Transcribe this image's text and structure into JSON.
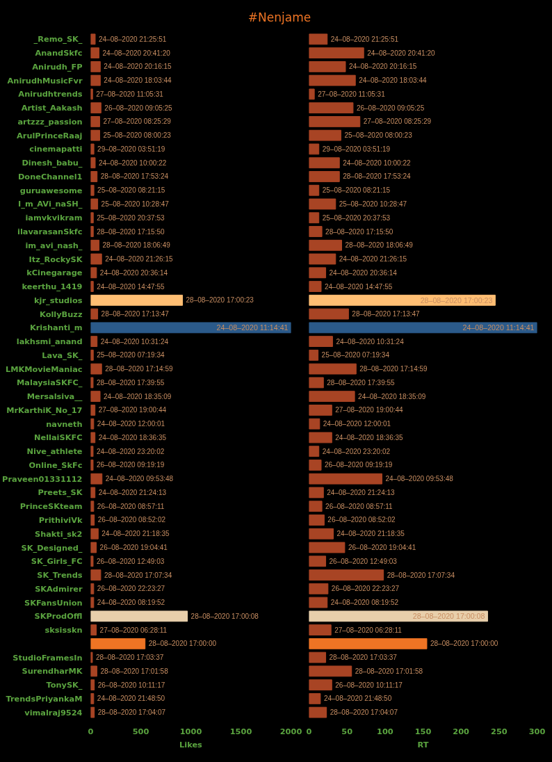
{
  "chart_data": [
    {
      "type": "bar",
      "orientation": "horizontal",
      "title": "#Nenjame",
      "xlabel": "Likes",
      "xlim": [
        0,
        2000
      ],
      "xticks": [
        0,
        500,
        1000,
        1500,
        2000
      ],
      "grid": false,
      "categories": [
        "_Remo_SK_",
        "AnandSkfc",
        "Anirudh_FP",
        "AnirudhMusicFvr",
        "Anirudhtrends",
        "Artist_Aakash",
        "artzzz_passion",
        "ArulPrinceRaaj",
        "cinemapatti",
        "Dinesh_babu_",
        "DoneChannel1",
        "guruawesome",
        "I_m_AVi_naSH_",
        "iamvkvikram",
        "ilavarasanSkfc",
        "im_avi_nash_",
        "Itz_RockySK",
        "kCinegarage",
        "keerthu_1419",
        "kjr_studios",
        "KollyBuzz",
        "Krishanti_m",
        "lakhsmi_anand",
        "Lava_SK_",
        "LMKMovieManiac",
        "MalaysiaSKFC_",
        "Mersalsiva__",
        "MrKarthiK_No_17",
        "navneth",
        "NellaiSKFC",
        "Nive_athlete",
        "Online_SkFc",
        "Praveen01331112",
        "Preets_SK",
        "PrinceSKteam",
        "PrithiviVk",
        "Shakti_sk2",
        "SK_Designed_",
        "SK_Girls_FC",
        "SK_Trends",
        "SKAdmirer",
        "SKFansUnion",
        "SKProdOffl",
        "sksisskn",
        null,
        "StudioFramesIn",
        "SurendharMK",
        "TonySK_",
        "TrendsPriyankaM",
        "vimalraj9524"
      ],
      "values": [
        45,
        83,
        96,
        96,
        19,
        103,
        90,
        90,
        32,
        45,
        64,
        32,
        70,
        26,
        26,
        83,
        109,
        58,
        26,
        917,
        70,
        2000,
        64,
        26,
        109,
        24,
        94,
        43,
        30,
        43,
        24,
        24,
        113,
        43,
        30,
        36,
        75,
        56,
        24,
        100,
        30,
        30,
        966,
        56,
        543,
        17,
        62,
        36,
        30,
        36
      ],
      "colors": [
        "#a84424",
        "#a84424",
        "#a84424",
        "#a84424",
        "#a84424",
        "#a84424",
        "#a84424",
        "#a84424",
        "#a84424",
        "#a84424",
        "#a84424",
        "#a84424",
        "#a84424",
        "#a84424",
        "#a84424",
        "#a84424",
        "#a84424",
        "#a84424",
        "#a84424",
        "#ffbe73",
        "#a84424",
        "#2b5a8a",
        "#a84424",
        "#a84424",
        "#a84424",
        "#a84424",
        "#a84424",
        "#a84424",
        "#a84424",
        "#a84424",
        "#a84424",
        "#a84424",
        "#a84424",
        "#a84424",
        "#a84424",
        "#a84424",
        "#a84424",
        "#a84424",
        "#a84424",
        "#a84424",
        "#a84424",
        "#a84424",
        "#e8cfab",
        "#a84424",
        "#ee7424",
        "#a84424",
        "#a84424",
        "#a84424",
        "#a84424",
        "#a84424"
      ],
      "value_labels": [
        "24–08–2020 21:25:51",
        "24–08–2020 20:41:20",
        "24–08–2020 20:16:15",
        "24–08–2020 18:03:44",
        "27–08–2020 11:05:31",
        "26–08–2020 09:05:25",
        "27–08–2020 08:25:29",
        "25–08–2020 08:00:23",
        "29–08–2020 03:51:19",
        "24–08–2020 10:00:22",
        "28–08–2020 17:53:24",
        "25–08–2020 08:21:15",
        "25–08–2020 10:28:47",
        "25–08–2020 20:37:53",
        "28–08–2020 17:15:50",
        "28–08–2020 18:06:49",
        "24–08–2020 21:26:15",
        "24–08–2020 20:36:14",
        "24–08–2020 14:47:55",
        "28–08–2020 17:00:23",
        "28–08–2020 17:13:47",
        "24–08–2020 11:14:41",
        "24–08–2020 10:31:24",
        "25–08–2020 07:19:34",
        "28–08–2020 17:14:59",
        "28–08–2020 17:39:55",
        "24–08–2020 18:35:09",
        "27–08–2020 19:00:44",
        "24–08–2020 12:00:01",
        "24–08–2020 18:36:35",
        "24–08–2020 23:20:02",
        "26–08–2020 09:19:19",
        "24–08–2020 09:53:48",
        "24–08–2020 21:24:13",
        "26–08–2020 08:57:11",
        "26–08–2020 08:52:02",
        "24–08–2020 21:18:35",
        "26–08–2020 19:04:41",
        "26–08–2020 12:49:03",
        "28–08–2020 17:07:34",
        "26–08–2020 22:23:27",
        "24–08–2020 08:19:52",
        "28–08–2020 17:00:08",
        "27–08–2020 06:28:11",
        "28–08–2020 17:00:00",
        "28–08–2020 17:03:37",
        "28–08–2020 17:01:58",
        "26–08–2020 10:11:17",
        "24–08–2020 21:48:50",
        "28–08–2020 17:04:07"
      ]
    },
    {
      "type": "bar",
      "orientation": "horizontal",
      "xlabel": "RT",
      "xlim": [
        0,
        300
      ],
      "xticks": [
        0,
        50,
        100,
        150,
        200,
        250,
        300
      ],
      "grid": false,
      "tick_labels": "x",
      "values": [
        24,
        72,
        48,
        61,
        7,
        58,
        67,
        42,
        13,
        40,
        40,
        13,
        35,
        13,
        17,
        43,
        35,
        22,
        16,
        245,
        52,
        300,
        31,
        12,
        62,
        19,
        60,
        30,
        14,
        30,
        13,
        16,
        96,
        19,
        17,
        20,
        32,
        47,
        22,
        98,
        25,
        24,
        235,
        29,
        155,
        22,
        56,
        30,
        15,
        23
      ],
      "colors": [
        "#a84424",
        "#a84424",
        "#a84424",
        "#a84424",
        "#a84424",
        "#a84424",
        "#a84424",
        "#a84424",
        "#a84424",
        "#a84424",
        "#a84424",
        "#a84424",
        "#a84424",
        "#a84424",
        "#a84424",
        "#a84424",
        "#a84424",
        "#a84424",
        "#a84424",
        "#ffbe73",
        "#a84424",
        "#2b5a8a",
        "#a84424",
        "#a84424",
        "#a84424",
        "#a84424",
        "#a84424",
        "#a84424",
        "#a84424",
        "#a84424",
        "#a84424",
        "#a84424",
        "#a84424",
        "#a84424",
        "#a84424",
        "#a84424",
        "#a84424",
        "#a84424",
        "#a84424",
        "#a84424",
        "#a84424",
        "#a84424",
        "#e8cfab",
        "#a84424",
        "#ee7424",
        "#a84424",
        "#a84424",
        "#a84424",
        "#a84424",
        "#a84424"
      ],
      "value_labels": [
        "24–08–2020 21:25:51",
        "24–08–2020 20:41:20",
        "24–08–2020 20:16:15",
        "24–08–2020 18:03:44",
        "27–08–2020 11:05:31",
        "26–08–2020 09:05:25",
        "27–08–2020 08:25:29",
        "25–08–2020 08:00:23",
        "29–08–2020 03:51:19",
        "24–08–2020 10:00:22",
        "28–08–2020 17:53:24",
        "25–08–2020 08:21:15",
        "25–08–2020 10:28:47",
        "25–08–2020 20:37:53",
        "28–08–2020 17:15:50",
        "28–08–2020 18:06:49",
        "24–08–2020 21:26:15",
        "24–08–2020 20:36:14",
        "24–08–2020 14:47:55",
        "28–08–2020 17:00:23",
        "28–08–2020 17:13:47",
        "24–08–2020 11:14:41",
        "24–08–2020 10:31:24",
        "25–08–2020 07:19:34",
        "28–08–2020 17:14:59",
        "28–08–2020 17:39:55",
        "24–08–2020 18:35:09",
        "27–08–2020 19:00:44",
        "24–08–2020 12:00:01",
        "24–08–2020 18:36:35",
        "24–08–2020 23:20:02",
        "26–08–2020 09:19:19",
        "24–08–2020 09:53:48",
        "24–08–2020 21:24:13",
        "26–08–2020 08:57:11",
        "26–08–2020 08:52:02",
        "24–08–2020 21:18:35",
        "26–08–2020 19:04:41",
        "26–08–2020 12:49:03",
        "28–08–2020 17:07:34",
        "26–08–2020 22:23:27",
        "24–08–2020 08:19:52",
        "28–08–2020 17:00:08",
        "27–08–2020 06:28:11",
        "28–08–2020 17:00:00",
        "28–08–2020 17:03:37",
        "28–08–2020 17:01:58",
        "26–08–2020 10:11:17",
        "24–08–2020 21:48:50",
        "28–08–2020 17:04:07"
      ]
    }
  ]
}
